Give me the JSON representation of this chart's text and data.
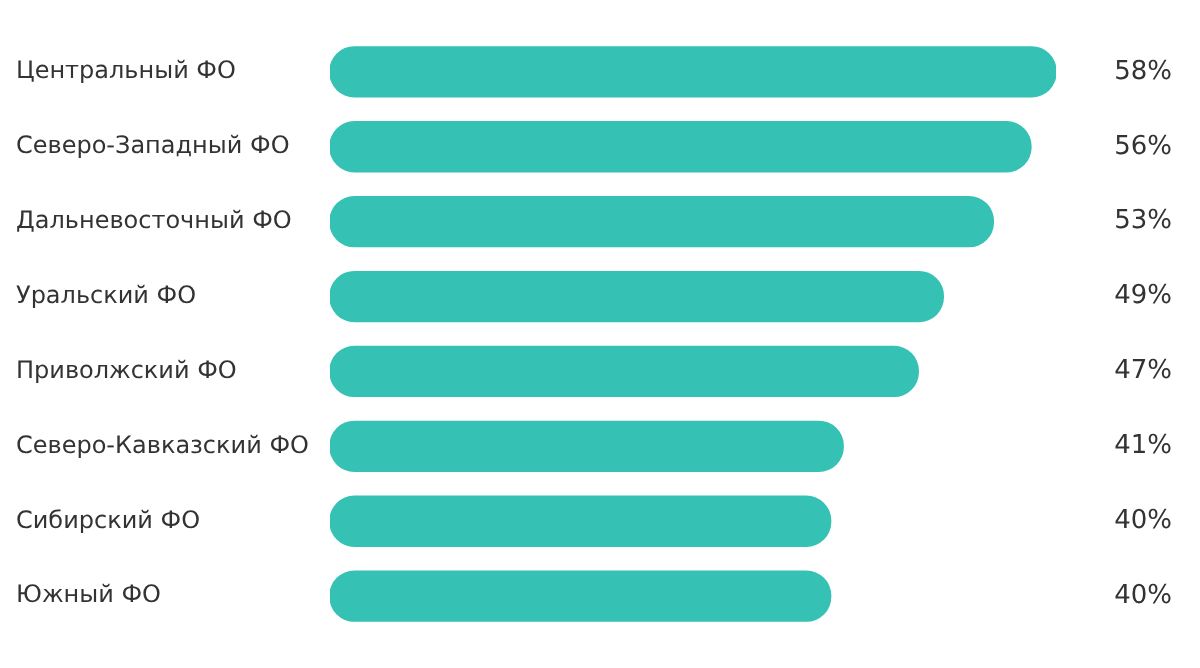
{
  "chart_data": {
    "type": "bar",
    "orientation": "horizontal",
    "categories": [
      "Центральный ФО",
      "Северо-Западный ФО",
      "Дальневосточный ФО",
      "Уральский ФО",
      "Приволжский ФО",
      "Северо-Кавказский ФО",
      "Сибирский ФО",
      "Южный ФО"
    ],
    "values": [
      58,
      56,
      53,
      49,
      47,
      41,
      40,
      40
    ],
    "value_labels": [
      "58%",
      "56%",
      "53%",
      "49%",
      "47%",
      "41%",
      "40%",
      "40%"
    ],
    "color": "#35c2b5",
    "grid": false,
    "legend": false
  }
}
